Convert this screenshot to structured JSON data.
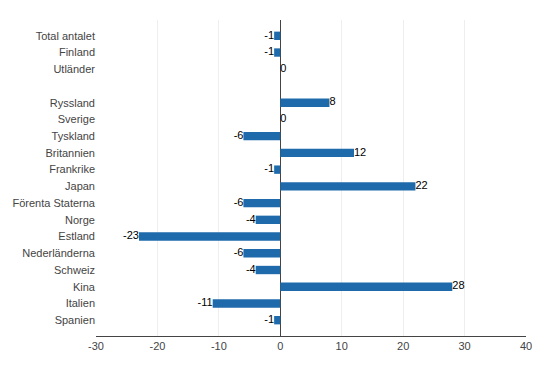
{
  "chart_data": {
    "type": "bar",
    "orientation": "horizontal",
    "categories": [
      "Total antalet",
      "Finland",
      "Utländer",
      null,
      "Ryssland",
      "Sverige",
      "Tyskland",
      "Britannien",
      "Frankrike",
      "Japan",
      "Förenta Staterna",
      "Norge",
      "Estland",
      "Nederländerna",
      "Schweiz",
      "Kina",
      "Italien",
      "Spanien"
    ],
    "values": [
      -1,
      -1,
      0,
      null,
      8,
      0,
      -6,
      12,
      -1,
      22,
      -6,
      -4,
      -23,
      -6,
      -4,
      28,
      -11,
      -1
    ],
    "color": "#1F6AAB",
    "xlim": [
      -30,
      40
    ],
    "xticks": [
      -30,
      -20,
      -10,
      0,
      10,
      20,
      30,
      40
    ],
    "grid": true,
    "data_labels": true
  }
}
